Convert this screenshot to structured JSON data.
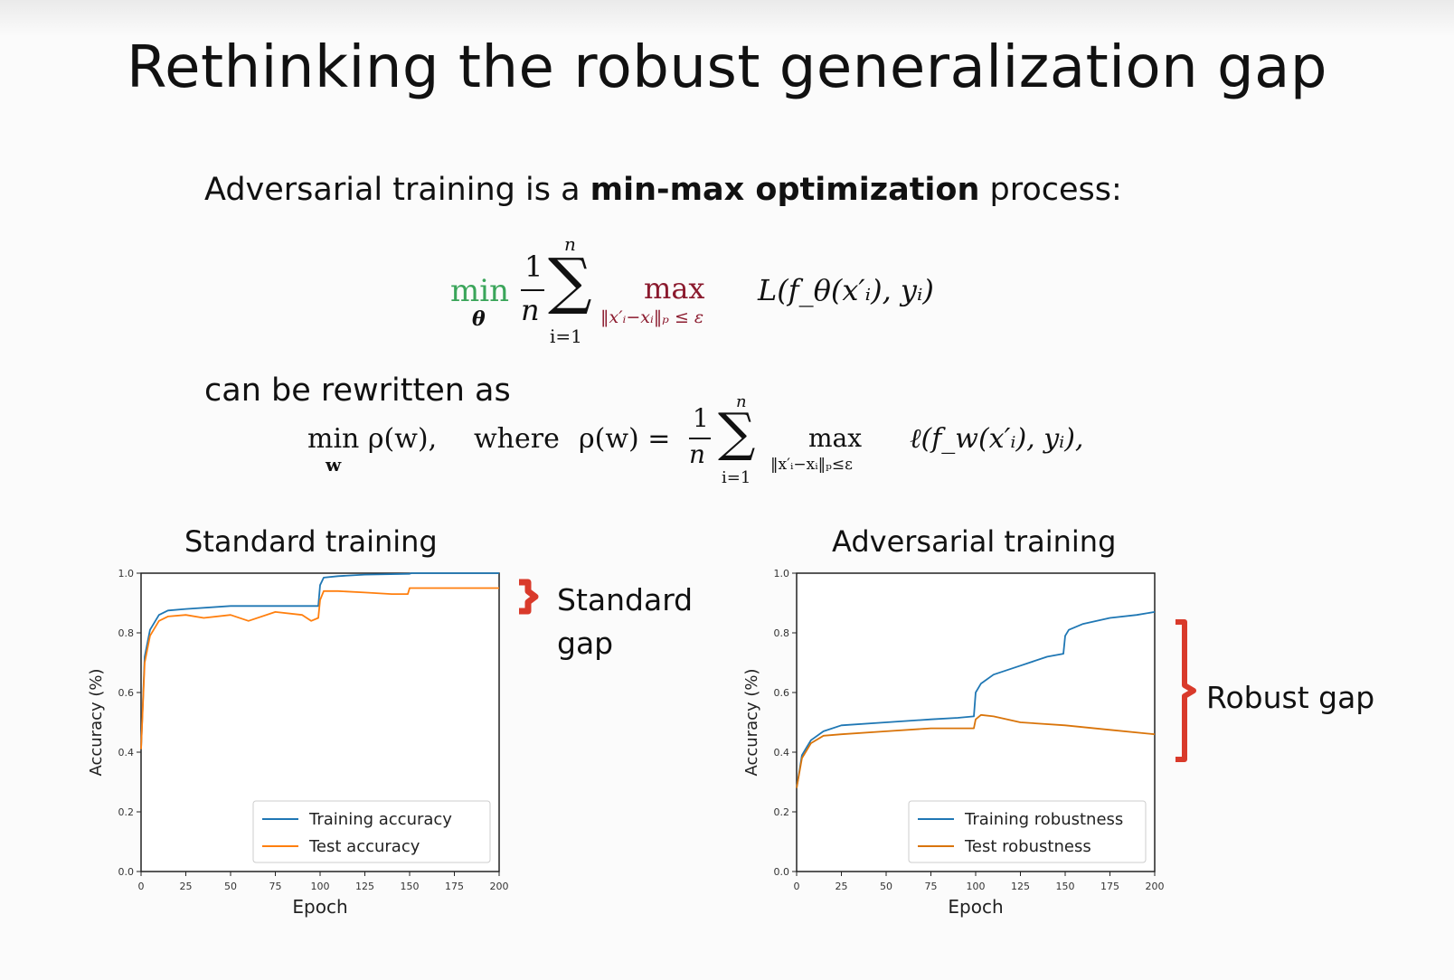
{
  "slide": {
    "title": "Rethinking the robust generalization gap",
    "intro_pre": "Adversarial training is a ",
    "intro_bold": "min-max optimization",
    "intro_post": " process:",
    "rewrite_text": "can be rewritten as"
  },
  "eq1": {
    "min": "min",
    "min_sub": "θ",
    "frac_num": "1",
    "frac_den": "n",
    "sum": "∑",
    "sum_top": "n",
    "sum_bot": "i=1",
    "max": "max",
    "max_sub": "‖x′ᵢ−xᵢ‖ₚ ≤ ε",
    "loss": "L(f_θ(x′ᵢ), yᵢ)"
  },
  "eq2": {
    "lhs": "min ρ(w),",
    "lhs_sub": "w",
    "where": "where",
    "rho": "ρ(w) =",
    "frac_num": "1",
    "frac_den": "n",
    "sum": "∑",
    "sum_top": "n",
    "sum_bot": "i=1",
    "max": "max",
    "max_sub": "‖x′ᵢ−xᵢ‖ₚ≤ε",
    "loss": "ℓ(f_w(x′ᵢ), yᵢ),"
  },
  "annotations": {
    "standard_gap_line1": "Standard",
    "standard_gap_line2": "gap",
    "robust_gap": "Robust gap",
    "bracket_color": "#d93a2b"
  },
  "chart_data": [
    {
      "type": "line",
      "title": "Standard training",
      "xlabel": "Epoch",
      "ylabel": "Accuracy (%)",
      "xlim": [
        0,
        200
      ],
      "ylim": [
        0.0,
        1.0
      ],
      "xticks": [
        0,
        25,
        50,
        75,
        100,
        125,
        150,
        175,
        200
      ],
      "yticks": [
        0.0,
        0.2,
        0.4,
        0.6,
        0.8,
        1.0
      ],
      "xtick_labels": [
        "0",
        "25",
        "50",
        "75",
        "100",
        "125",
        "150",
        "175",
        "200"
      ],
      "ytick_labels": [
        "0.0",
        "0.2",
        "0.4",
        "0.6",
        "0.8",
        "1.0"
      ],
      "legend_position": "lower-right",
      "series": [
        {
          "name": "Training accuracy",
          "color": "#1f77b4",
          "x": [
            0,
            2,
            5,
            10,
            15,
            25,
            50,
            75,
            95,
            99,
            100,
            102,
            110,
            125,
            150,
            151,
            175,
            200
          ],
          "y": [
            0.41,
            0.72,
            0.81,
            0.86,
            0.875,
            0.88,
            0.89,
            0.89,
            0.89,
            0.89,
            0.96,
            0.985,
            0.99,
            0.995,
            0.998,
            1.0,
            1.0,
            1.0
          ]
        },
        {
          "name": "Test accuracy",
          "color": "#ff7f0e",
          "x": [
            0,
            2,
            5,
            10,
            15,
            25,
            35,
            50,
            60,
            75,
            90,
            95,
            99,
            100,
            102,
            110,
            125,
            140,
            149,
            150,
            175,
            200
          ],
          "y": [
            0.41,
            0.7,
            0.79,
            0.84,
            0.855,
            0.86,
            0.85,
            0.86,
            0.84,
            0.87,
            0.86,
            0.84,
            0.85,
            0.91,
            0.94,
            0.94,
            0.935,
            0.93,
            0.93,
            0.95,
            0.95,
            0.95
          ]
        }
      ]
    },
    {
      "type": "line",
      "title": "Adversarial training",
      "xlabel": "Epoch",
      "ylabel": "Accuracy (%)",
      "xlim": [
        0,
        200
      ],
      "ylim": [
        0.0,
        1.0
      ],
      "xticks": [
        0,
        25,
        50,
        75,
        100,
        125,
        150,
        175,
        200
      ],
      "yticks": [
        0.0,
        0.2,
        0.4,
        0.6,
        0.8,
        1.0
      ],
      "xtick_labels": [
        "0",
        "25",
        "50",
        "75",
        "100",
        "125",
        "150",
        "175",
        "200"
      ],
      "ytick_labels": [
        "0.0",
        "0.2",
        "0.4",
        "0.6",
        "0.8",
        "1.0"
      ],
      "legend_position": "lower-right",
      "series": [
        {
          "name": "Training robustness",
          "color": "#1f77b4",
          "x": [
            0,
            3,
            8,
            15,
            25,
            50,
            75,
            90,
            99,
            100,
            103,
            110,
            125,
            140,
            149,
            150,
            152,
            160,
            175,
            190,
            200
          ],
          "y": [
            0.28,
            0.39,
            0.44,
            0.47,
            0.49,
            0.5,
            0.51,
            0.515,
            0.52,
            0.6,
            0.63,
            0.66,
            0.69,
            0.72,
            0.73,
            0.79,
            0.81,
            0.83,
            0.85,
            0.86,
            0.87
          ]
        },
        {
          "name": "Test robustness",
          "color": "#d9740a",
          "x": [
            0,
            3,
            8,
            15,
            25,
            50,
            75,
            90,
            99,
            100,
            103,
            110,
            125,
            150,
            175,
            200
          ],
          "y": [
            0.28,
            0.38,
            0.43,
            0.455,
            0.46,
            0.47,
            0.48,
            0.48,
            0.48,
            0.51,
            0.525,
            0.52,
            0.5,
            0.49,
            0.475,
            0.46
          ]
        }
      ]
    }
  ]
}
